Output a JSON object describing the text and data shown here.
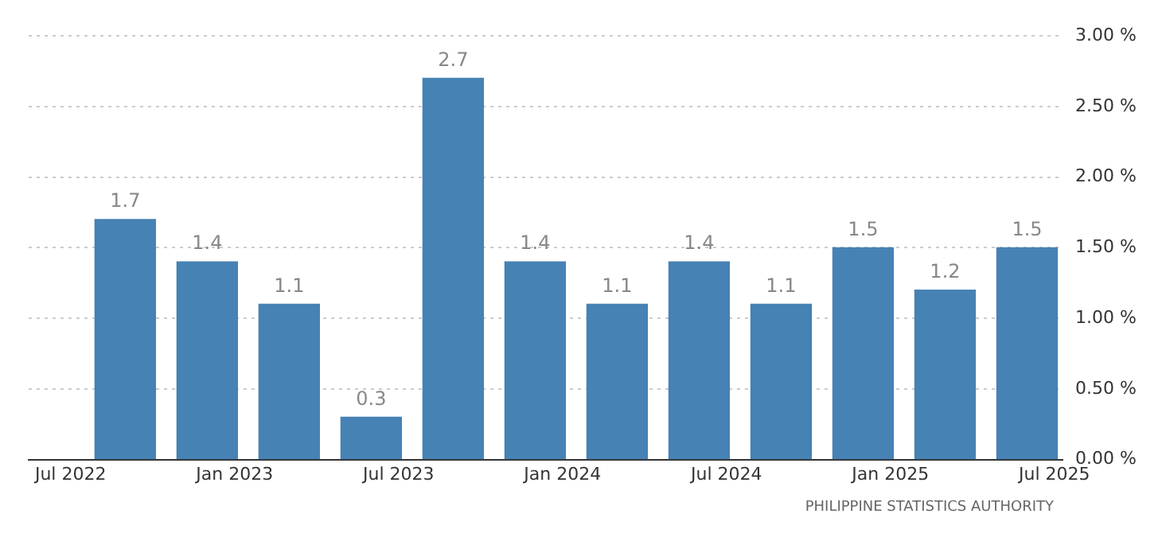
{
  "chart_data": {
    "type": "bar",
    "x": [
      "2022-09",
      "2022-12",
      "2023-03",
      "2023-06",
      "2023-09",
      "2023-12",
      "2024-03",
      "2024-06",
      "2024-09",
      "2024-12",
      "2025-03",
      "2025-06"
    ],
    "values": [
      1.7,
      1.4,
      1.1,
      0.3,
      2.7,
      1.4,
      1.1,
      1.4,
      1.1,
      1.5,
      1.2,
      1.5
    ],
    "color": "#4682b4",
    "data_labels": true,
    "xlim": [
      "2022-05-15",
      "2025-07-10"
    ],
    "xticks": [
      {
        "value": "2022-07",
        "label": "Jul 2022"
      },
      {
        "value": "2023-01",
        "label": "Jan 2023"
      },
      {
        "value": "2023-07",
        "label": "Jul 2023"
      },
      {
        "value": "2024-01",
        "label": "Jan 2024"
      },
      {
        "value": "2024-07",
        "label": "Jul 2024"
      },
      {
        "value": "2025-01",
        "label": "Jan 2025"
      },
      {
        "value": "2025-07",
        "label": "Jul 2025"
      }
    ],
    "ylim": [
      0,
      3
    ],
    "yticks": [
      {
        "value": 0,
        "label": "0.00 %"
      },
      {
        "value": 0.5,
        "label": "0.50 %"
      },
      {
        "value": 1,
        "label": "1.00 %"
      },
      {
        "value": 1.5,
        "label": "1.50 %"
      },
      {
        "value": 2,
        "label": "2.00 %"
      },
      {
        "value": 2.5,
        "label": "2.50 %"
      },
      {
        "value": 3,
        "label": "3.00 %"
      }
    ],
    "grid": "y",
    "legend": false,
    "annotations": [
      "PHILIPPINE STATISTICS AUTHORITY"
    ]
  }
}
